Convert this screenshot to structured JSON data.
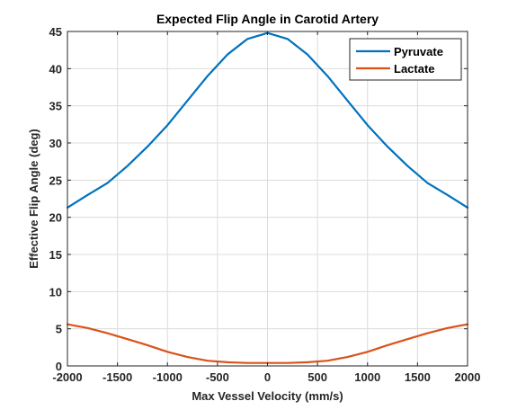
{
  "chart_data": {
    "type": "line",
    "title": "Expected Flip Angle in Carotid Artery",
    "xlabel": "Max Vessel Velocity (mm/s)",
    "ylabel": "Effective Flip Angle (deg)",
    "xlim": [
      -2000,
      2000
    ],
    "ylim": [
      0,
      45
    ],
    "xticks": [
      "-2000",
      "-1500",
      "-1000",
      "-500",
      "0",
      "500",
      "1000",
      "1500",
      "2000"
    ],
    "yticks": [
      "0",
      "5",
      "10",
      "15",
      "20",
      "25",
      "30",
      "35",
      "40",
      "45"
    ],
    "xtick_values": [
      -2000,
      -1500,
      -1000,
      -500,
      0,
      500,
      1000,
      1500,
      2000
    ],
    "ytick_values": [
      0,
      5,
      10,
      15,
      20,
      25,
      30,
      35,
      40,
      45
    ],
    "grid": true,
    "legend_position": "top-right",
    "x": [
      -2000,
      -1800,
      -1600,
      -1400,
      -1200,
      -1000,
      -800,
      -600,
      -400,
      -200,
      0,
      200,
      400,
      600,
      800,
      1000,
      1200,
      1400,
      1600,
      1800,
      2000
    ],
    "series": [
      {
        "name": "Pyruvate",
        "color": "#0072BD",
        "values": [
          21.3,
          23.0,
          24.6,
          26.9,
          29.5,
          32.4,
          35.7,
          39.0,
          41.9,
          44.0,
          44.8,
          44.0,
          41.9,
          39.0,
          35.7,
          32.4,
          29.5,
          26.9,
          24.6,
          23.0,
          21.3
        ]
      },
      {
        "name": "Lactate",
        "color": "#D95319",
        "values": [
          5.6,
          5.1,
          4.4,
          3.6,
          2.8,
          1.9,
          1.2,
          0.7,
          0.5,
          0.4,
          0.4,
          0.4,
          0.5,
          0.7,
          1.2,
          1.9,
          2.8,
          3.6,
          4.4,
          5.1,
          5.6
        ]
      }
    ]
  }
}
